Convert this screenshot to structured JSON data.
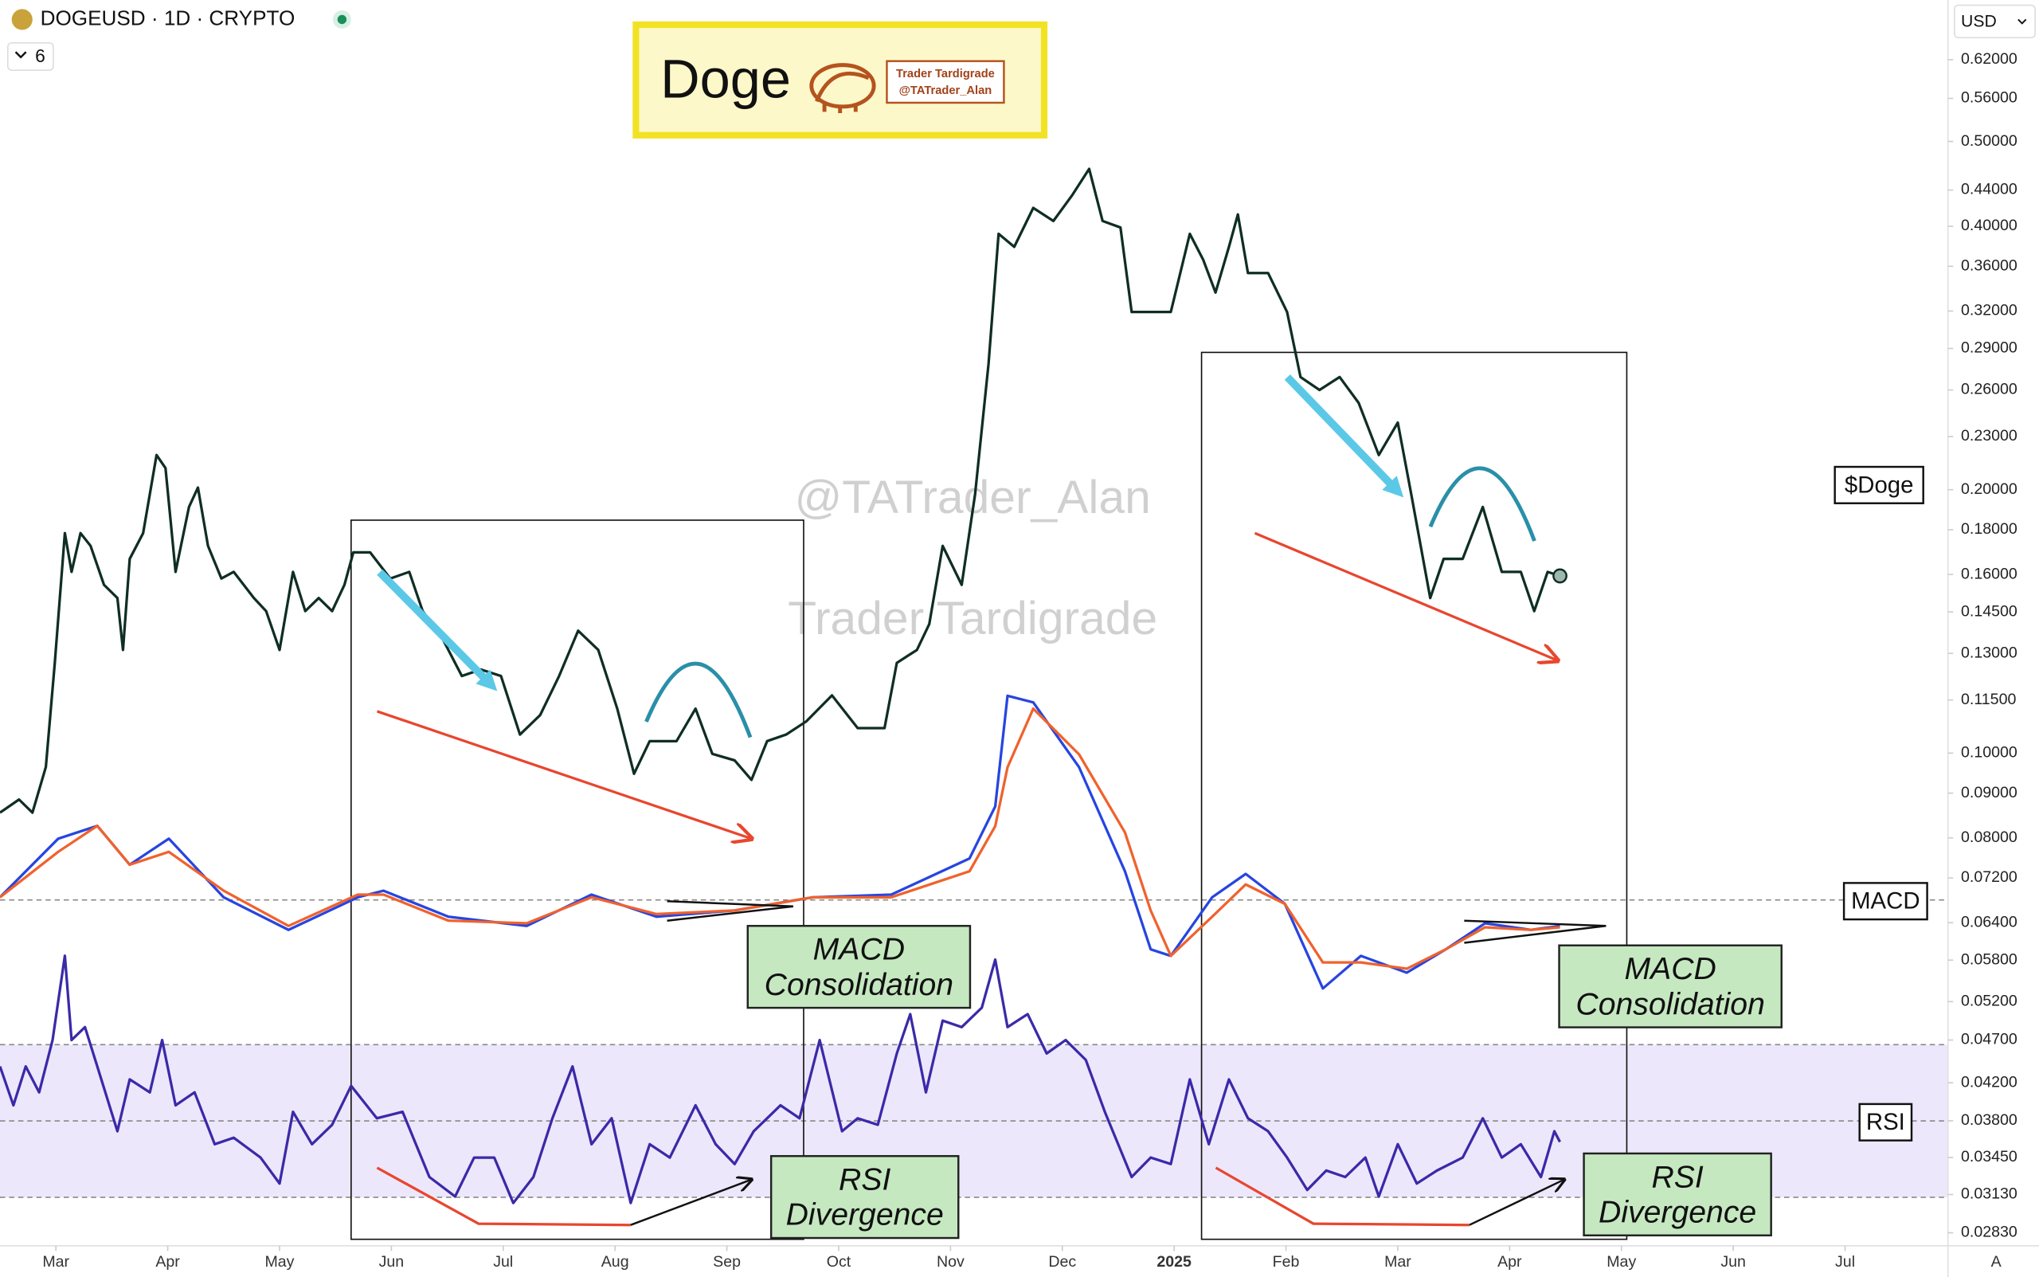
{
  "header": {
    "symbol": "DOGEUSD · 1D · CRYPTO",
    "interval_count": "6",
    "currency": "USD",
    "scale_button": "A"
  },
  "logo": {
    "title": "Doge",
    "line1": "Trader Tardigrade",
    "line2": "@TATrader_Alan"
  },
  "watermarks": [
    "@TATrader_Alan",
    "Trader Tardigrade"
  ],
  "chart_data": [
    {
      "type": "line",
      "title": "$Doge",
      "log_scale": true,
      "x": [
        -0.5,
        -0.33,
        -0.21,
        -0.09,
        -0.01,
        0.08,
        0.14,
        0.22,
        0.31,
        0.43,
        0.55,
        0.6,
        0.66,
        0.78,
        0.9,
        0.98,
        1.07,
        1.19,
        1.27,
        1.36,
        1.48,
        1.59,
        1.77,
        1.88,
        2.0,
        2.12,
        2.23,
        2.35,
        2.47,
        2.58,
        2.66,
        2.81,
        2.99,
        3.16,
        3.28,
        3.45,
        3.63,
        3.8,
        3.98,
        4.15,
        4.33,
        4.5,
        4.67,
        4.85,
        5.02,
        5.17,
        5.31,
        5.55,
        5.72,
        5.87,
        6.07,
        6.22,
        6.36,
        6.53,
        6.71,
        6.94,
        7.17,
        7.41,
        7.52,
        7.7,
        7.81,
        7.93,
        8.1,
        8.22,
        8.34,
        8.43,
        8.57,
        8.74,
        8.92,
        9.09,
        9.24,
        9.36,
        9.52,
        9.62,
        9.79,
        9.97,
        10.14,
        10.26,
        10.37,
        10.49,
        10.57,
        10.66,
        10.84,
        11.01,
        11.13,
        11.3,
        11.48,
        11.65,
        11.83,
        12.0,
        12.12,
        12.29,
        12.41,
        12.58,
        12.76,
        12.93,
        13.1,
        13.22,
        13.34,
        13.45
      ],
      "series": [
        {
          "color": "#0f2e24",
          "values": [
            0.0855,
            0.0885,
            0.0855,
            0.0964,
            0.1268,
            0.1784,
            0.1611,
            0.1784,
            0.1725,
            0.1557,
            0.1504,
            0.1312,
            0.1667,
            0.1784,
            0.2191,
            0.2117,
            0.1611,
            0.1911,
            0.2011,
            0.1725,
            0.1583,
            0.1611,
            0.1504,
            0.1453,
            0.1312,
            0.1611,
            0.1453,
            0.1504,
            0.1453,
            0.1557,
            0.1696,
            0.1696,
            0.1583,
            0.1611,
            0.1453,
            0.1357,
            0.1225,
            0.1246,
            0.1225,
            0.105,
            0.1105,
            0.1225,
            0.138,
            0.1312,
            0.1124,
            0.0947,
            0.1032,
            0.1032,
            0.1124,
            0.0998,
            0.0981,
            0.0932,
            0.1032,
            0.105,
            0.1087,
            0.1164,
            0.1068,
            0.1068,
            0.1268,
            0.1312,
            0.1404,
            0.1725,
            0.1557,
            0.1977,
            0.2784,
            0.3921,
            0.3789,
            0.4198,
            0.4056,
            0.4344,
            0.4652,
            0.4056,
            0.3987,
            0.3192,
            0.3192,
            0.3192,
            0.3921,
            0.3662,
            0.336,
            0.3789,
            0.4126,
            0.3537,
            0.3537,
            0.3192,
            0.269,
            0.26,
            0.269,
            0.2513,
            0.2191,
            0.2386,
            0.1977,
            0.1504,
            0.1667,
            0.1667,
            0.1911,
            0.1611,
            0.1611,
            0.1453,
            0.1611,
            0.1594
          ]
        }
      ],
      "xlim": [
        -0.5,
        16.92
      ],
      "xticks": [
        {
          "value": 0,
          "label": "Mar"
        },
        {
          "value": 1,
          "label": "Apr"
        },
        {
          "value": 2,
          "label": "May"
        },
        {
          "value": 3,
          "label": "Jun"
        },
        {
          "value": 4,
          "label": "Jul"
        },
        {
          "value": 5,
          "label": "Aug"
        },
        {
          "value": 6,
          "label": "Sep"
        },
        {
          "value": 7,
          "label": "Oct"
        },
        {
          "value": 8,
          "label": "Nov"
        },
        {
          "value": 9,
          "label": "Dec"
        },
        {
          "value": 10,
          "label": "2025",
          "bold": true
        },
        {
          "value": 11,
          "label": "Feb"
        },
        {
          "value": 12,
          "label": "Mar"
        },
        {
          "value": 13,
          "label": "Apr"
        },
        {
          "value": 14,
          "label": "May"
        },
        {
          "value": 15,
          "label": "Jun"
        },
        {
          "value": 16,
          "label": "Jul"
        }
      ],
      "ylim": [
        0.02735,
        0.7255
      ],
      "yticks": [
        {
          "value": 0.62,
          "label": "0.62000"
        },
        {
          "value": 0.56,
          "label": "0.56000"
        },
        {
          "value": 0.5,
          "label": "0.50000"
        },
        {
          "value": 0.44,
          "label": "0.44000"
        },
        {
          "value": 0.4,
          "label": "0.40000"
        },
        {
          "value": 0.36,
          "label": "0.36000"
        },
        {
          "value": 0.32,
          "label": "0.32000"
        },
        {
          "value": 0.29,
          "label": "0.29000"
        },
        {
          "value": 0.26,
          "label": "0.26000"
        },
        {
          "value": 0.23,
          "label": "0.23000"
        },
        {
          "value": 0.2,
          "label": "0.20000"
        },
        {
          "value": 0.18,
          "label": "0.18000"
        },
        {
          "value": 0.16,
          "label": "0.16000"
        },
        {
          "value": 0.145,
          "label": "0.14500"
        },
        {
          "value": 0.13,
          "label": "0.13000"
        },
        {
          "value": 0.115,
          "label": "0.11500"
        },
        {
          "value": 0.1,
          "label": "0.10000"
        },
        {
          "value": 0.09,
          "label": "0.09000"
        },
        {
          "value": 0.08,
          "label": "0.08000"
        },
        {
          "value": 0.072,
          "label": "0.07200"
        },
        {
          "value": 0.064,
          "label": "0.06400"
        },
        {
          "value": 0.058,
          "label": "0.05800"
        },
        {
          "value": 0.052,
          "label": "0.05200"
        },
        {
          "value": 0.047,
          "label": "0.04700"
        },
        {
          "value": 0.042,
          "label": "0.04200"
        },
        {
          "value": 0.038,
          "label": "0.03800"
        },
        {
          "value": 0.0345,
          "label": "0.03450"
        },
        {
          "value": 0.0313,
          "label": "0.03130"
        },
        {
          "value": 0.0283,
          "label": "0.02830"
        }
      ]
    },
    {
      "type": "line",
      "title": "MACD",
      "x": [
        -0.5,
        0.02,
        0.37,
        0.66,
        1.01,
        1.5,
        2.08,
        2.7,
        2.93,
        3.51,
        4.21,
        4.79,
        5.37,
        6.07,
        6.77,
        7.47,
        8.17,
        8.4,
        8.51,
        8.74,
        9.15,
        9.56,
        9.79,
        9.97,
        10.34,
        10.64,
        10.99,
        11.33,
        11.67,
        12.08,
        12.43,
        12.78,
        13.19,
        13.45
      ],
      "series": [
        {
          "color": "#2745e0",
          "values": [
            0.0008,
            0.0186,
            0.0225,
            0.0107,
            0.0186,
            0.0008,
            -0.0091,
            0.0008,
            0.0028,
            -0.0051,
            -0.0079,
            0.0016,
            -0.0051,
            -0.0032,
            0.0008,
            0.0016,
            0.0126,
            0.0284,
            0.062,
            0.06,
            0.0403,
            0.0087,
            -0.015,
            -0.017,
            0.0008,
            0.0079,
            -0.0012,
            -0.0269,
            -0.017,
            -0.0221,
            -0.015,
            -0.0071,
            -0.0091,
            -0.0079
          ]
        },
        {
          "color": "#f0622d",
          "values": [
            0.0008,
            0.0146,
            0.0225,
            0.0107,
            0.0146,
            0.0028,
            -0.0079,
            0.0016,
            0.0016,
            -0.0063,
            -0.0071,
            0.0008,
            -0.0043,
            -0.0032,
            0.0008,
            0.0008,
            0.0087,
            0.0224,
            0.0403,
            0.0581,
            0.0442,
            0.0205,
            -0.0032,
            -0.017,
            -0.0051,
            0.0047,
            -0.0012,
            -0.019,
            -0.019,
            -0.0209,
            -0.015,
            -0.0083,
            -0.0091,
            -0.0083
          ]
        }
      ],
      "ylim": [
        -0.0308,
        0.064
      ],
      "levels": [
        0
      ],
      "annotations": [
        "MACD Consolidation",
        "MACD Consolidation"
      ]
    },
    {
      "type": "line",
      "title": "RSI",
      "x": [
        -0.5,
        -0.38,
        -0.27,
        -0.15,
        -0.03,
        0.08,
        0.14,
        0.26,
        0.37,
        0.55,
        0.66,
        0.84,
        0.95,
        1.07,
        1.24,
        1.42,
        1.59,
        1.83,
        2.0,
        2.12,
        2.29,
        2.47,
        2.64,
        2.87,
        3.1,
        3.34,
        3.57,
        3.74,
        3.92,
        4.09,
        4.27,
        4.44,
        4.62,
        4.79,
        4.97,
        5.14,
        5.31,
        5.49,
        5.72,
        5.9,
        6.07,
        6.24,
        6.48,
        6.65,
        6.83,
        7.03,
        7.17,
        7.35,
        7.52,
        7.64,
        7.78,
        7.93,
        8.1,
        8.28,
        8.4,
        8.51,
        8.69,
        8.86,
        9.03,
        9.21,
        9.38,
        9.62,
        9.79,
        9.97,
        10.14,
        10.31,
        10.49,
        10.66,
        10.84,
        11.01,
        11.19,
        11.36,
        11.53,
        11.71,
        11.83,
        12.0,
        12.17,
        12.35,
        12.58,
        12.76,
        12.93,
        13.1,
        13.28,
        13.4,
        13.45
      ],
      "series": [
        {
          "color": "#3a2aa8",
          "values": [
            64.3,
            54.1,
            64.3,
            57.5,
            71.2,
            93.3,
            71.2,
            74.6,
            64.3,
            47.3,
            60.9,
            57.5,
            71.2,
            54.1,
            57.5,
            43.9,
            45.6,
            40.4,
            33.6,
            52.4,
            43.9,
            49.0,
            59.2,
            50.7,
            52.4,
            35.3,
            30.2,
            40.4,
            40.4,
            28.5,
            35.3,
            50.7,
            64.3,
            43.9,
            50.7,
            28.5,
            43.9,
            40.4,
            54.1,
            43.9,
            38.7,
            47.3,
            54.1,
            50.7,
            71.2,
            47.3,
            50.7,
            49.0,
            67.7,
            78.0,
            57.5,
            76.3,
            74.6,
            79.7,
            92.3,
            74.6,
            78.0,
            67.7,
            71.2,
            66.0,
            52.4,
            35.3,
            40.4,
            38.7,
            60.9,
            43.9,
            60.9,
            50.7,
            47.3,
            40.4,
            31.9,
            37.0,
            35.3,
            40.4,
            30.2,
            43.9,
            33.6,
            37.0,
            40.4,
            50.7,
            40.4,
            43.9,
            35.3,
            47.3,
            44.5
          ]
        }
      ],
      "ylim": [
        20,
        95
      ],
      "levels": [
        30,
        50,
        70
      ],
      "band": true,
      "band_color": "#ede7fb",
      "annotations": [
        "RSI Divergence",
        "RSI Divergence"
      ]
    }
  ]
}
